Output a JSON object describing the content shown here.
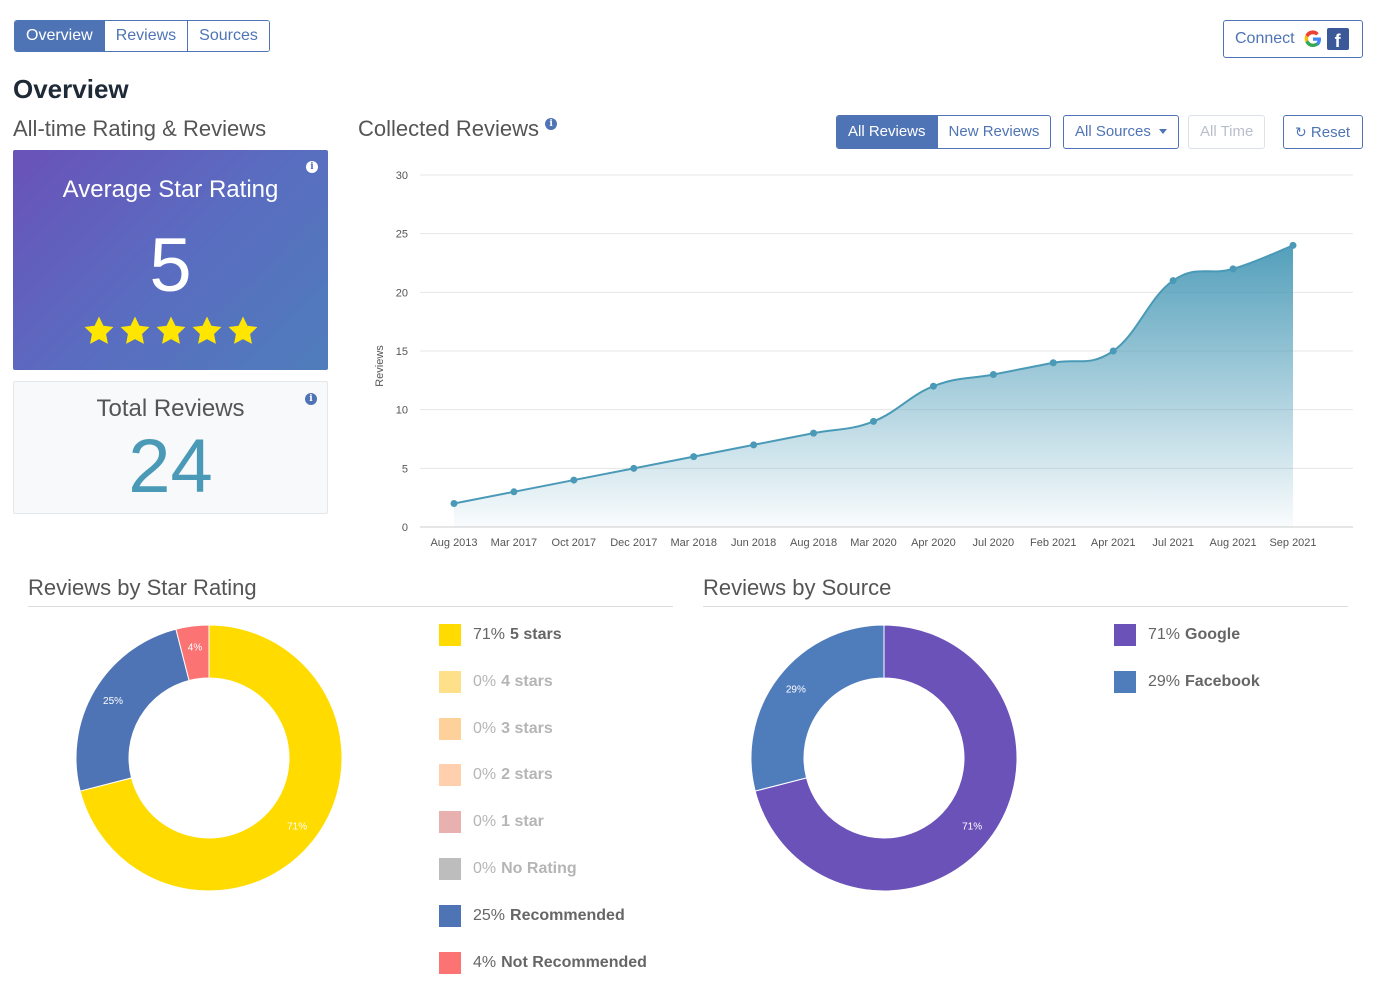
{
  "tabs": [
    {
      "label": "Overview",
      "active": true
    },
    {
      "label": "Reviews",
      "active": false
    },
    {
      "label": "Sources",
      "active": false
    }
  ],
  "connect": {
    "label": "Connect",
    "icons": [
      "google-icon",
      "facebook-icon"
    ]
  },
  "page_title": "Overview",
  "alltime": {
    "heading": "All-time Rating & Reviews",
    "avg_label": "Average Star Rating",
    "avg_value": "5",
    "stars": 5,
    "total_label": "Total Reviews",
    "total_value": "24"
  },
  "collected": {
    "heading": "Collected Reviews",
    "filters": {
      "all": "All Reviews",
      "new": "New Reviews",
      "sources": "All Sources",
      "time": "All Time",
      "reset": "Reset"
    }
  },
  "star_section": {
    "heading": "Reviews by Star Rating",
    "legend": [
      {
        "pct": "71%",
        "label": "5 stars",
        "color": "#ffdb00",
        "zero": false
      },
      {
        "pct": "0%",
        "label": "4 stars",
        "color": "#ffe08a",
        "zero": true
      },
      {
        "pct": "0%",
        "label": "3 stars",
        "color": "#ffd19a",
        "zero": true
      },
      {
        "pct": "0%",
        "label": "2 stars",
        "color": "#ffcfae",
        "zero": true
      },
      {
        "pct": "0%",
        "label": "1 star",
        "color": "#e8b0ae",
        "zero": true
      },
      {
        "pct": "0%",
        "label": "No Rating",
        "color": "#bdbdbd",
        "zero": true
      },
      {
        "pct": "25%",
        "label": "Recommended",
        "color": "#4f74b5",
        "zero": false
      },
      {
        "pct": "4%",
        "label": "Not Recommended",
        "color": "#fb7473",
        "zero": false
      }
    ]
  },
  "source_section": {
    "heading": "Reviews by Source",
    "legend": [
      {
        "pct": "71%",
        "label": "Google",
        "color": "#6a52b9"
      },
      {
        "pct": "29%",
        "label": "Facebook",
        "color": "#4f7dbc"
      }
    ]
  },
  "chart_data": [
    {
      "type": "area",
      "title": "Collected Reviews",
      "xlabel": "",
      "ylabel": "Reviews",
      "ylim": [
        0,
        30
      ],
      "yticks": [
        0,
        5,
        10,
        15,
        20,
        25,
        30
      ],
      "categories": [
        "Aug 2013",
        "Mar 2017",
        "Oct 2017",
        "Dec 2017",
        "Mar 2018",
        "Jun 2018",
        "Aug 2018",
        "Mar 2020",
        "Apr 2020",
        "Jul 2020",
        "Feb 2021",
        "Apr 2021",
        "Jul 2021",
        "Aug 2021",
        "Sep 2021"
      ],
      "values": [
        2,
        3,
        4,
        5,
        6,
        7,
        8,
        9,
        12,
        13,
        14,
        15,
        21,
        22,
        24
      ],
      "color": "#4a9ab7"
    },
    {
      "type": "pie",
      "title": "Reviews by Star Rating",
      "slices": [
        {
          "label": "5 stars",
          "value": 71,
          "color": "#ffdb00"
        },
        {
          "label": "Recommended",
          "value": 25,
          "color": "#4f74b5"
        },
        {
          "label": "Not Recommended",
          "value": 4,
          "color": "#fb7473"
        }
      ]
    },
    {
      "type": "pie",
      "title": "Reviews by Source",
      "slices": [
        {
          "label": "Google",
          "value": 71,
          "color": "#6a52b9"
        },
        {
          "label": "Facebook",
          "value": 29,
          "color": "#4f7dbc"
        }
      ]
    }
  ]
}
